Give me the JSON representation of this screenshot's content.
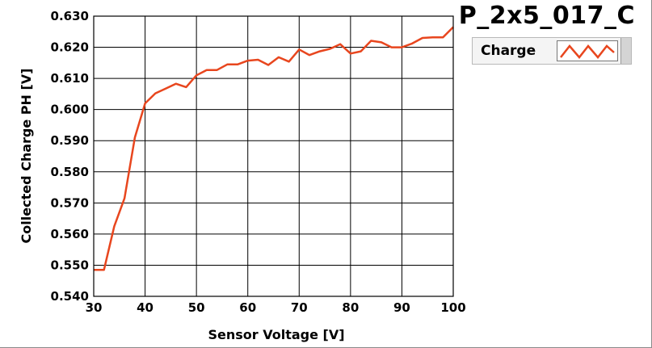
{
  "chart_data": {
    "type": "line",
    "title": "P_2x5_017_C",
    "xlabel": "Sensor Voltage [V]",
    "ylabel": "Collected Charge PH [V]",
    "xlim": [
      30,
      100
    ],
    "ylim": [
      0.54,
      0.63
    ],
    "grid": true,
    "legend_position": "top-right",
    "x_ticks": [
      "30",
      "40",
      "50",
      "60",
      "70",
      "80",
      "90",
      "100"
    ],
    "y_ticks": [
      "0.540",
      "0.550",
      "0.560",
      "0.570",
      "0.580",
      "0.590",
      "0.600",
      "0.610",
      "0.620",
      "0.630"
    ],
    "series": [
      {
        "name": "Charge",
        "color": "#e8461e",
        "x": [
          30,
          32,
          34,
          36,
          38,
          40,
          42,
          44,
          46,
          48,
          50,
          52,
          54,
          56,
          58,
          60,
          62,
          64,
          66,
          68,
          70,
          72,
          74,
          76,
          78,
          80,
          82,
          84,
          86,
          88,
          90,
          92,
          94,
          96,
          98,
          100
        ],
        "y": [
          0.5485,
          0.5485,
          0.5625,
          0.5715,
          0.591,
          0.602,
          0.6052,
          0.6067,
          0.6083,
          0.6072,
          0.611,
          0.6127,
          0.6127,
          0.6145,
          0.6145,
          0.6157,
          0.616,
          0.6143,
          0.6168,
          0.6154,
          0.6193,
          0.6175,
          0.6187,
          0.6195,
          0.621,
          0.618,
          0.6187,
          0.6221,
          0.6216,
          0.62,
          0.62,
          0.6212,
          0.623,
          0.6232,
          0.6232,
          0.6265
        ]
      }
    ]
  }
}
